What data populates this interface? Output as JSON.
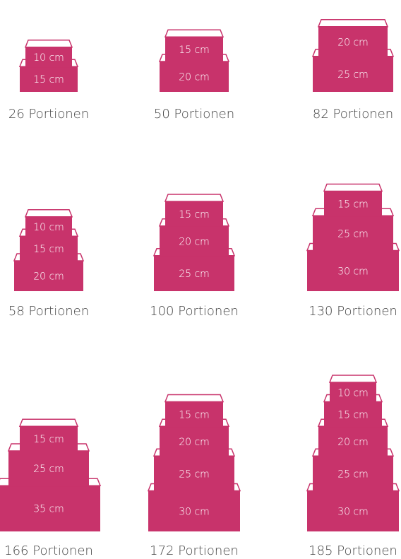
{
  "cakes": [
    {
      "tiers": [
        "10 cm",
        "15 cm"
      ],
      "portions": "26 Portionen"
    },
    {
      "tiers": [
        "15 cm",
        "20 cm"
      ],
      "portions": "50 Portionen"
    },
    {
      "tiers": [
        "20 cm",
        "25 cm"
      ],
      "portions": "82 Portionen"
    },
    {
      "tiers": [
        "10 cm",
        "15 cm",
        "20 cm"
      ],
      "portions": "58 Portionen"
    },
    {
      "tiers": [
        "15 cm",
        "20 cm",
        "25 cm"
      ],
      "portions": "100 Portionen"
    },
    {
      "tiers": [
        "15 cm",
        "25 cm",
        "30 cm"
      ],
      "portions": "130 Portionen"
    },
    {
      "tiers": [
        "15 cm",
        "25 cm",
        "35 cm"
      ],
      "portions": "166 Portionen"
    },
    {
      "tiers": [
        "15 cm",
        "20 cm",
        "25 cm",
        "30 cm"
      ],
      "portions": "172 Portionen"
    },
    {
      "tiers": [
        "10 cm",
        "15 cm",
        "20 cm",
        "25 cm",
        "30 cm"
      ],
      "portions": "185 Portionen"
    }
  ]
}
